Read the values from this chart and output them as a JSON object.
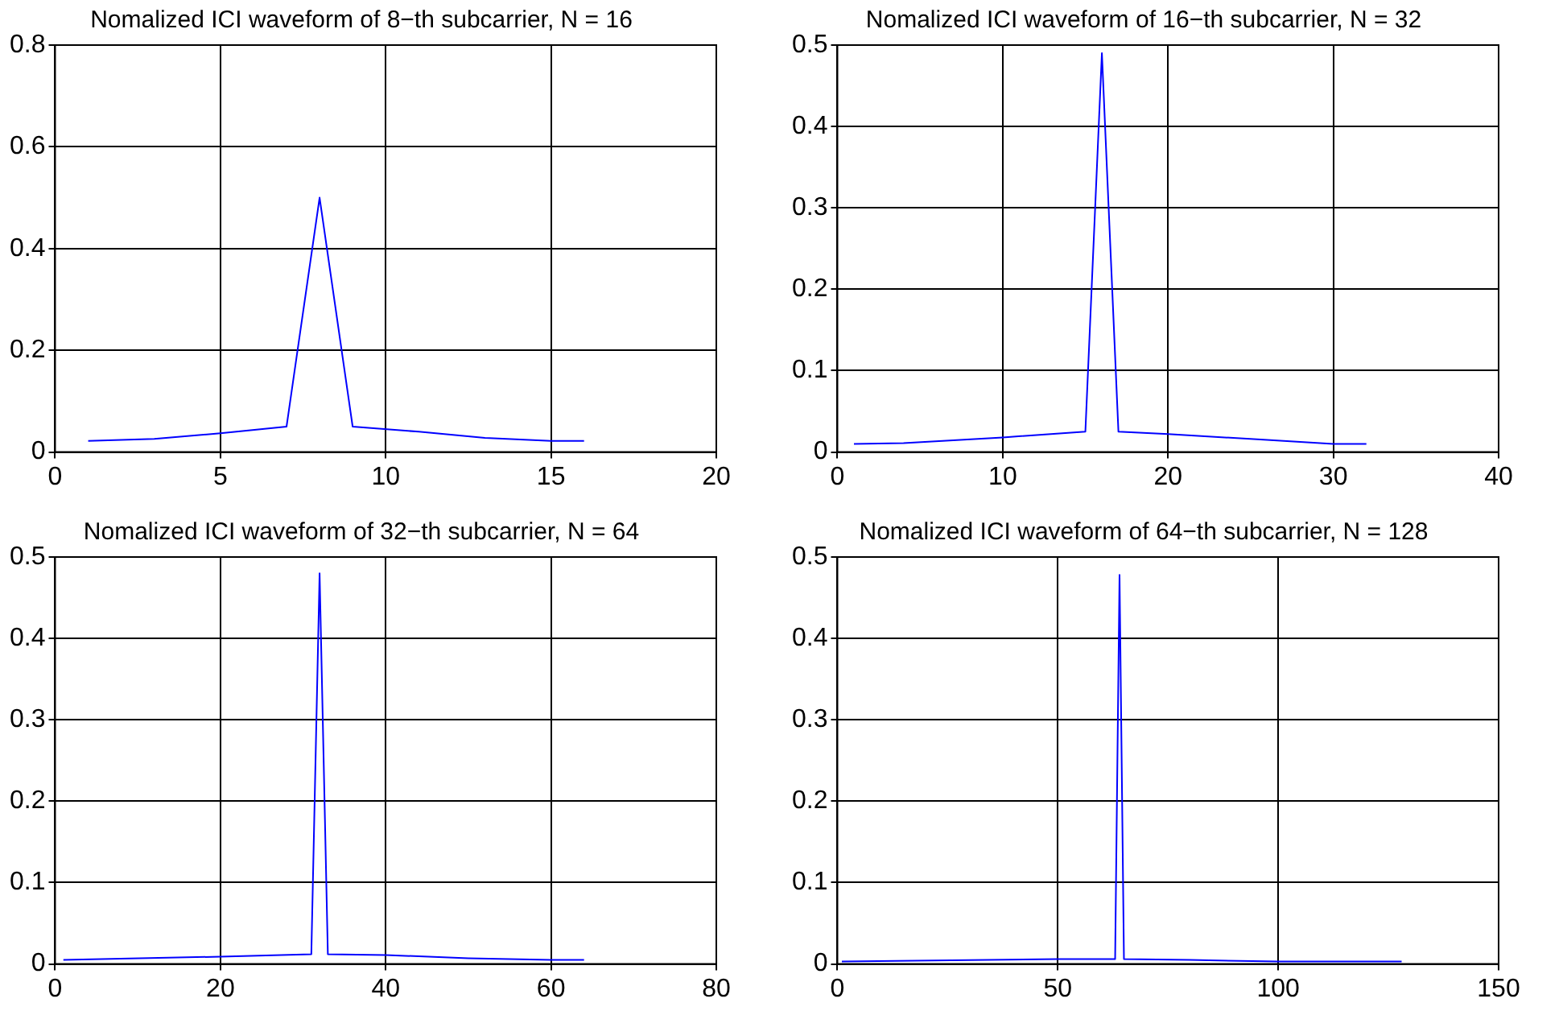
{
  "chart_data": [
    {
      "type": "line",
      "title": "Nomalized ICI waveform of 8−th subcarrier, N = 16",
      "color": "#0000ff",
      "x": [
        1,
        3,
        5,
        7,
        8,
        9,
        11,
        13,
        15,
        16
      ],
      "values": [
        0.022,
        0.026,
        0.037,
        0.05,
        0.5,
        0.05,
        0.04,
        0.028,
        0.022,
        0.022
      ],
      "xlim": [
        0,
        20
      ],
      "xticks": [
        0,
        5,
        10,
        15,
        20
      ],
      "ylim": [
        0,
        0.8
      ],
      "yticks": [
        0,
        0.2,
        0.4,
        0.6,
        0.8
      ],
      "grid": true
    },
    {
      "type": "line",
      "title": "Nomalized ICI waveform of 16−th subcarrier, N = 32",
      "color": "#0000ff",
      "x": [
        1,
        4,
        10,
        15,
        16,
        17,
        20,
        26,
        30,
        32
      ],
      "values": [
        0.01,
        0.011,
        0.018,
        0.025,
        0.49,
        0.025,
        0.022,
        0.015,
        0.01,
        0.01
      ],
      "xlim": [
        0,
        40
      ],
      "xticks": [
        0,
        10,
        20,
        30,
        40
      ],
      "ylim": [
        0,
        0.5
      ],
      "yticks": [
        0,
        0.1,
        0.2,
        0.3,
        0.4,
        0.5
      ],
      "grid": true
    },
    {
      "type": "line",
      "title": "Nomalized ICI waveform of 32−th subcarrier, N = 64",
      "color": "#0000ff",
      "x": [
        1,
        20,
        31,
        32,
        33,
        40,
        50,
        60,
        64
      ],
      "values": [
        0.005,
        0.009,
        0.012,
        0.48,
        0.012,
        0.011,
        0.007,
        0.005,
        0.005
      ],
      "xlim": [
        0,
        80
      ],
      "xticks": [
        0,
        20,
        40,
        60,
        80
      ],
      "ylim": [
        0,
        0.5
      ],
      "yticks": [
        0,
        0.1,
        0.2,
        0.3,
        0.4,
        0.5
      ],
      "grid": true
    },
    {
      "type": "line",
      "title": "Nomalized ICI waveform of 64−th subcarrier, N = 128",
      "color": "#0000ff",
      "x": [
        1,
        50,
        63,
        64,
        65,
        80,
        100,
        128
      ],
      "values": [
        0.003,
        0.006,
        0.006,
        0.478,
        0.006,
        0.005,
        0.003,
        0.003
      ],
      "xlim": [
        0,
        150
      ],
      "xticks": [
        0,
        50,
        100,
        150
      ],
      "ylim": [
        0,
        0.5
      ],
      "yticks": [
        0,
        0.1,
        0.2,
        0.3,
        0.4,
        0.5
      ],
      "grid": true
    }
  ]
}
